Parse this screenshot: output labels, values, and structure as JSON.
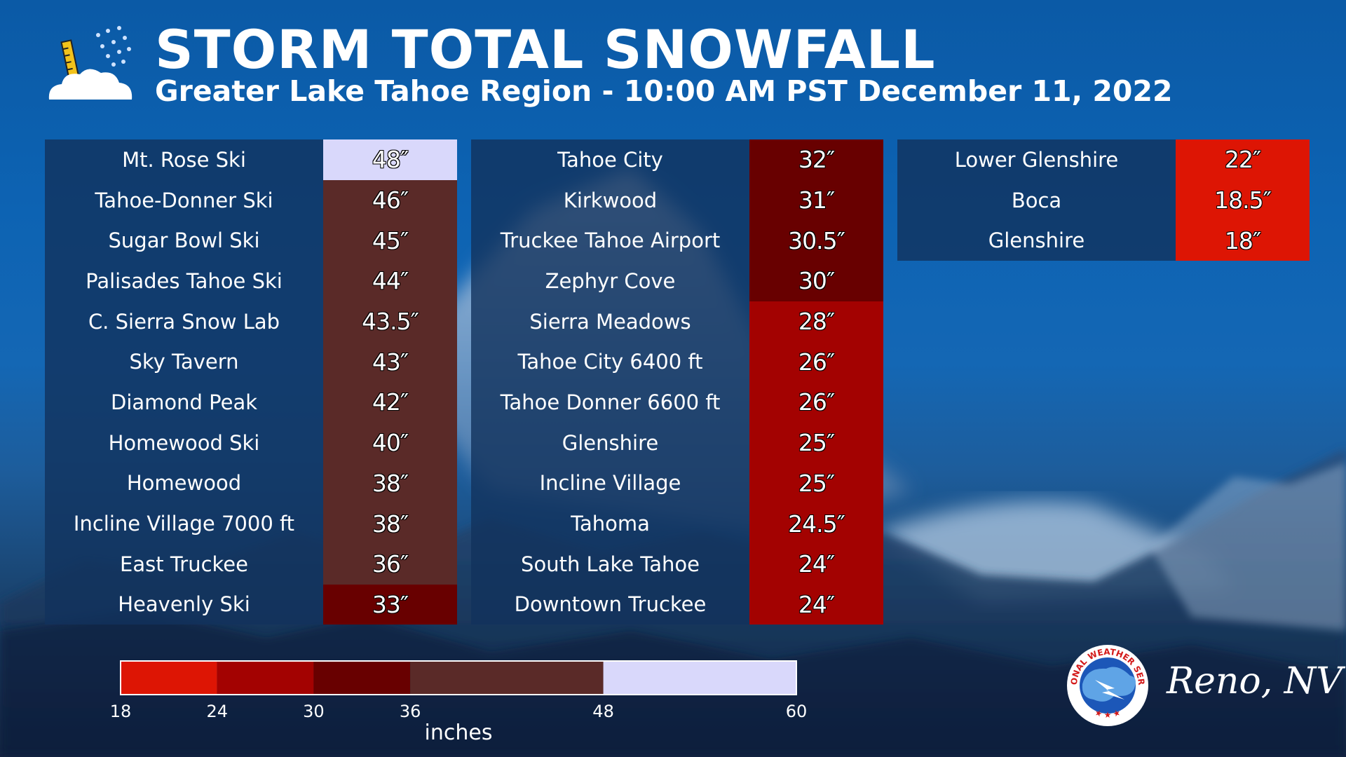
{
  "header": {
    "title": "STORM TOTAL SNOWFALL",
    "subtitle": "Greater Lake Tahoe Region - 10:00 AM PST December 11, 2022",
    "icon": "snow-cloud-ruler-icon"
  },
  "colors": {
    "18-24": "#dd1504",
    "24-30": "#a30201",
    "30-36": "#680000",
    "36-48": "#5a2a28",
    "48-60": "#d9d8fb"
  },
  "chart_data": {
    "type": "table",
    "units": "inches",
    "columns": [
      {
        "rows": [
          {
            "location": "Mt. Rose Ski",
            "value": 48,
            "label": "48″"
          },
          {
            "location": "Tahoe-Donner Ski",
            "value": 46,
            "label": "46″"
          },
          {
            "location": "Sugar Bowl Ski",
            "value": 45,
            "label": "45″"
          },
          {
            "location": "Palisades Tahoe Ski",
            "value": 44,
            "label": "44″"
          },
          {
            "location": "C. Sierra Snow Lab",
            "value": 43.5,
            "label": "43.5″"
          },
          {
            "location": "Sky Tavern",
            "value": 43,
            "label": "43″"
          },
          {
            "location": "Diamond Peak",
            "value": 42,
            "label": "42″"
          },
          {
            "location": "Homewood Ski",
            "value": 40,
            "label": "40″"
          },
          {
            "location": "Homewood",
            "value": 38,
            "label": "38″"
          },
          {
            "location": "Incline Village 7000 ft",
            "value": 38,
            "label": "38″"
          },
          {
            "location": "East Truckee",
            "value": 36,
            "label": "36″"
          },
          {
            "location": "Heavenly Ski",
            "value": 33,
            "label": "33″"
          }
        ]
      },
      {
        "rows": [
          {
            "location": "Tahoe City",
            "value": 32,
            "label": "32″"
          },
          {
            "location": "Kirkwood",
            "value": 31,
            "label": "31″"
          },
          {
            "location": "Truckee Tahoe Airport",
            "value": 30.5,
            "label": "30.5″"
          },
          {
            "location": "Zephyr Cove",
            "value": 30,
            "label": "30″"
          },
          {
            "location": "Sierra Meadows",
            "value": 28,
            "label": "28″"
          },
          {
            "location": "Tahoe City 6400 ft",
            "value": 26,
            "label": "26″"
          },
          {
            "location": "Tahoe Donner 6600 ft",
            "value": 26,
            "label": "26″"
          },
          {
            "location": "Glenshire",
            "value": 25,
            "label": "25″"
          },
          {
            "location": "Incline Village",
            "value": 25,
            "label": "25″"
          },
          {
            "location": "Tahoma",
            "value": 24.5,
            "label": "24.5″"
          },
          {
            "location": "South Lake Tahoe",
            "value": 24,
            "label": "24″"
          },
          {
            "location": "Downtown Truckee",
            "value": 24,
            "label": "24″"
          }
        ]
      },
      {
        "rows": [
          {
            "location": "Lower Glenshire",
            "value": 22,
            "label": "22″"
          },
          {
            "location": "Boca",
            "value": 18.5,
            "label": "18.5″"
          },
          {
            "location": "Glenshire",
            "value": 18,
            "label": "18″"
          }
        ]
      }
    ],
    "color_scale": {
      "label": "inches",
      "range": [
        18,
        60
      ],
      "ticks": [
        18,
        24,
        30,
        36,
        48,
        60
      ],
      "bins": [
        {
          "from": 18,
          "to": 24,
          "color": "#dd1504"
        },
        {
          "from": 24,
          "to": 30,
          "color": "#a30201"
        },
        {
          "from": 30,
          "to": 36,
          "color": "#680000"
        },
        {
          "from": 36,
          "to": 48,
          "color": "#5a2a28"
        },
        {
          "from": 48,
          "to": 60,
          "color": "#d9d8fb"
        }
      ]
    }
  },
  "footer": {
    "office": "Reno, NV",
    "logo_text": "NATIONAL WEATHER SERVICE"
  }
}
